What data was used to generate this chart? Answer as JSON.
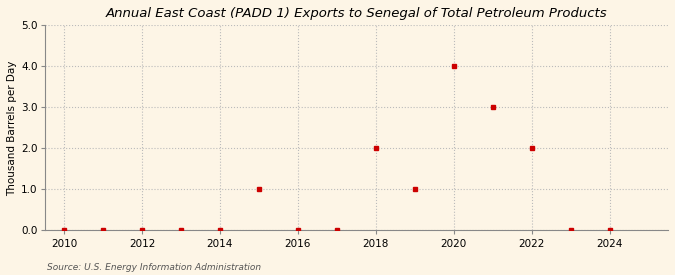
{
  "title": "Annual East Coast (PADD 1) Exports to Senegal of Total Petroleum Products",
  "ylabel": "Thousand Barrels per Day",
  "source": "Source: U.S. Energy Information Administration",
  "background_color": "#fdf5e6",
  "plot_background_color": "#fdf5e6",
  "x_data": [
    2010,
    2011,
    2012,
    2013,
    2014,
    2015,
    2016,
    2017,
    2018,
    2019,
    2020,
    2021,
    2022,
    2023,
    2024
  ],
  "y_data": [
    0.0,
    0.0,
    0.0,
    0.0,
    0.0,
    1.0,
    0.0,
    0.0,
    2.0,
    1.0,
    4.0,
    3.0,
    2.0,
    0.0,
    0.0
  ],
  "marker_color": "#cc0000",
  "marker_style": "s",
  "marker_size": 3,
  "xlim": [
    2009.5,
    2025.5
  ],
  "ylim": [
    0.0,
    5.0
  ],
  "yticks": [
    0.0,
    1.0,
    2.0,
    3.0,
    4.0,
    5.0
  ],
  "xticks": [
    2010,
    2012,
    2014,
    2016,
    2018,
    2020,
    2022,
    2024
  ],
  "grid_color": "#bbbbbb",
  "grid_linestyle": ":",
  "title_fontsize": 9.5,
  "label_fontsize": 7.5,
  "tick_fontsize": 7.5,
  "source_fontsize": 6.5
}
